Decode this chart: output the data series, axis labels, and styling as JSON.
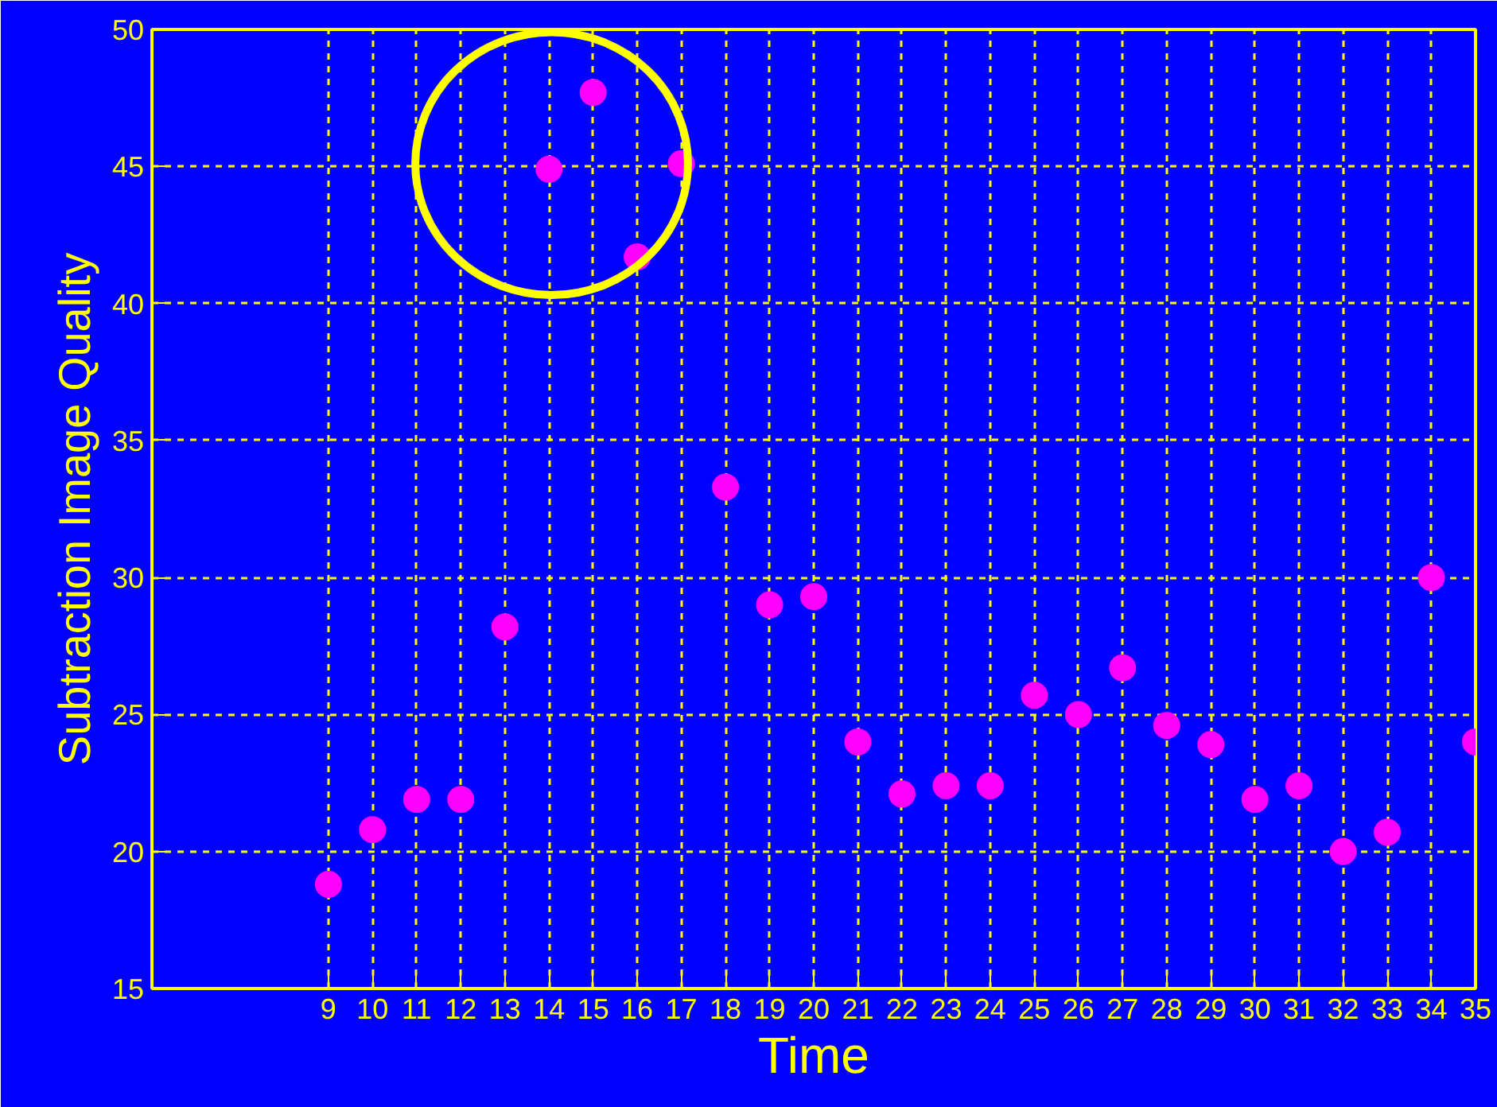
{
  "chart_data": {
    "type": "scatter",
    "xlabel": "Time",
    "ylabel": "Subtraction Image Quality",
    "x": [
      9,
      10,
      11,
      12,
      13,
      14,
      15,
      16,
      17,
      18,
      19,
      20,
      21,
      22,
      23,
      24,
      25,
      26,
      27,
      28,
      29,
      30,
      31,
      32,
      33,
      34,
      35
    ],
    "series": [
      {
        "color": "#ff00ff",
        "values": [
          18.8,
          20.8,
          21.9,
          21.9,
          28.2,
          44.9,
          47.7,
          41.7,
          45.1,
          33.3,
          29.0,
          29.3,
          24.0,
          22.1,
          22.4,
          22.4,
          25.7,
          25.0,
          26.7,
          24.6,
          23.9,
          21.9,
          22.4,
          20.0,
          20.7,
          30.0,
          24.0
        ]
      }
    ],
    "xlim": [
      5,
      35
    ],
    "ylim": [
      15,
      50
    ],
    "xticks": [
      9,
      10,
      11,
      12,
      13,
      14,
      15,
      16,
      17,
      18,
      19,
      20,
      21,
      22,
      23,
      24,
      25,
      26,
      27,
      28,
      29,
      30,
      31,
      32,
      33,
      34,
      35
    ],
    "yticks": [
      15,
      20,
      25,
      30,
      35,
      40,
      45,
      50
    ],
    "grid": true,
    "marker": "circle"
  }
}
